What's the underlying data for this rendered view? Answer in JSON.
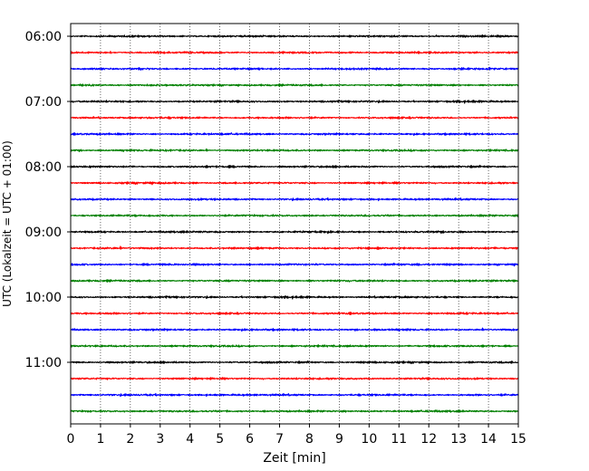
{
  "chart_data": {
    "type": "line",
    "title": "",
    "xlabel": "Zeit  [min]",
    "ylabel": "UTC (Lokalzeit = UTC + 01:00)",
    "xlim": [
      0,
      15
    ],
    "x_ticks": [
      "0",
      "1",
      "2",
      "3",
      "4",
      "5",
      "6",
      "7",
      "8",
      "9",
      "10",
      "11",
      "12",
      "13",
      "14",
      "15"
    ],
    "y_ticks": [
      "06:00",
      "07:00",
      "08:00",
      "09:00",
      "10:00",
      "11:00"
    ],
    "grid": "vertical dotted lines at each minute",
    "trace_colors": [
      "#000000",
      "#ff0000",
      "#0000ff",
      "#008000"
    ],
    "traces": [
      {
        "start": "06:00",
        "color": "#000000"
      },
      {
        "start": "06:15",
        "color": "#ff0000"
      },
      {
        "start": "06:30",
        "color": "#0000ff"
      },
      {
        "start": "06:45",
        "color": "#008000"
      },
      {
        "start": "07:00",
        "color": "#000000"
      },
      {
        "start": "07:15",
        "color": "#ff0000"
      },
      {
        "start": "07:30",
        "color": "#0000ff"
      },
      {
        "start": "07:45",
        "color": "#008000"
      },
      {
        "start": "08:00",
        "color": "#000000"
      },
      {
        "start": "08:15",
        "color": "#ff0000"
      },
      {
        "start": "08:30",
        "color": "#0000ff"
      },
      {
        "start": "08:45",
        "color": "#008000"
      },
      {
        "start": "09:00",
        "color": "#000000"
      },
      {
        "start": "09:15",
        "color": "#ff0000"
      },
      {
        "start": "09:30",
        "color": "#0000ff"
      },
      {
        "start": "09:45",
        "color": "#008000"
      },
      {
        "start": "10:00",
        "color": "#000000"
      },
      {
        "start": "10:15",
        "color": "#ff0000"
      },
      {
        "start": "10:30",
        "color": "#0000ff"
      },
      {
        "start": "10:45",
        "color": "#008000"
      },
      {
        "start": "11:00",
        "color": "#000000"
      },
      {
        "start": "11:15",
        "color": "#ff0000"
      },
      {
        "start": "11:30",
        "color": "#0000ff"
      },
      {
        "start": "11:45",
        "color": "#008000"
      }
    ]
  }
}
